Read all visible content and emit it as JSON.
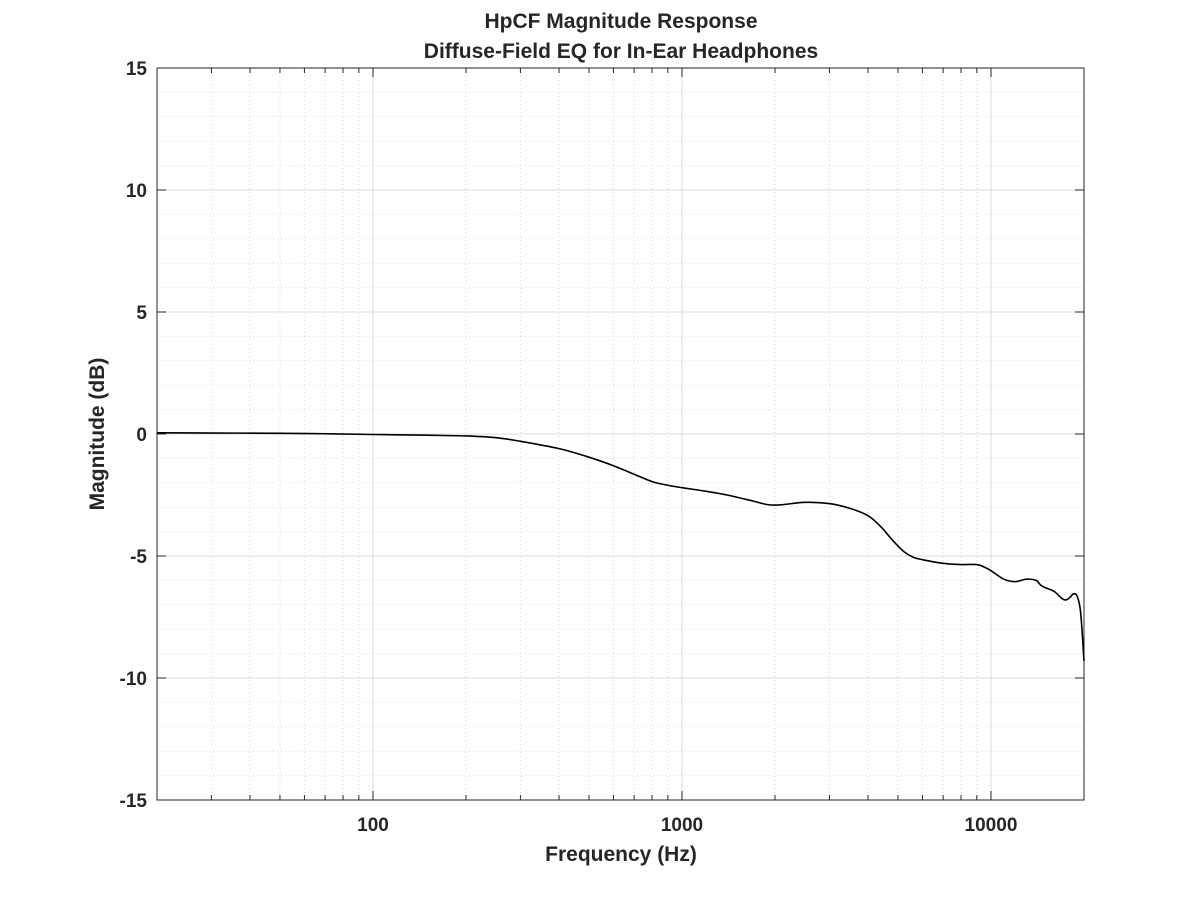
{
  "chart_data": {
    "type": "line",
    "title": "HpCF Magnitude Response",
    "subtitle": "Diffuse-Field EQ for In-Ear Headphones",
    "xlabel": "Frequency (Hz)",
    "ylabel": "Magnitude (dB)",
    "xscale": "log",
    "xlim": [
      20,
      20000
    ],
    "ylim": [
      -15,
      15
    ],
    "xticks": [
      100,
      1000,
      10000
    ],
    "xtick_labels": [
      "100",
      "1000",
      "10000"
    ],
    "yticks": [
      15,
      10,
      5,
      0,
      -5,
      -10,
      -15
    ],
    "ytick_labels": [
      "15",
      "10",
      "5",
      "0",
      "-5",
      "-10",
      "-15"
    ],
    "grid": true,
    "minor_grid": true,
    "line_color": "#000000",
    "series": [
      {
        "x": [
          20,
          30,
          50,
          70,
          100,
          150,
          200,
          250,
          300,
          400,
          500,
          600,
          700,
          800,
          900,
          1000,
          1200,
          1400,
          1700,
          1900,
          2100,
          2500,
          3000,
          3500,
          4000,
          4400,
          4800,
          5200,
          5600,
          6000,
          7000,
          8000,
          9000,
          9500,
          10000,
          11000,
          12000,
          13000,
          14000,
          14500,
          15000,
          16000,
          17000,
          17500,
          18000,
          18500,
          19000,
          19500,
          20000
        ],
        "y": [
          0.05,
          0.04,
          0.03,
          0.01,
          -0.02,
          -0.05,
          -0.08,
          -0.15,
          -0.3,
          -0.6,
          -0.95,
          -1.3,
          -1.65,
          -1.95,
          -2.1,
          -2.2,
          -2.35,
          -2.5,
          -2.75,
          -2.9,
          -2.9,
          -2.8,
          -2.85,
          -3.05,
          -3.35,
          -3.8,
          -4.35,
          -4.8,
          -5.05,
          -5.15,
          -5.3,
          -5.35,
          -5.35,
          -5.45,
          -5.6,
          -5.95,
          -6.05,
          -5.95,
          -6.0,
          -6.2,
          -6.3,
          -6.45,
          -6.75,
          -6.8,
          -6.7,
          -6.55,
          -6.65,
          -7.3,
          -9.3
        ]
      }
    ]
  }
}
